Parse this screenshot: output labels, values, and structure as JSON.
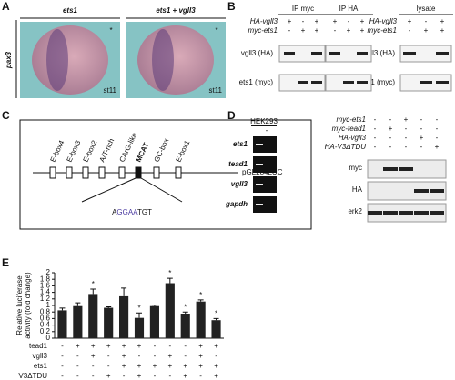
{
  "panel_labels": [
    "A",
    "B",
    "C",
    "D",
    "E"
  ],
  "panel_a": {
    "columns": [
      "ets1",
      "ets1 + vgll3"
    ],
    "row_label": "pax3",
    "asterisk": "*",
    "stage": "st11"
  },
  "panel_b": {
    "groups": [
      "IP myc",
      "IP HA",
      "lysate"
    ],
    "conditions": [
      {
        "label": "HA-vgll3",
        "ip": [
          "+",
          "-",
          "+",
          "+",
          "-",
          "+"
        ],
        "lysate": [
          "+",
          "-",
          "+"
        ]
      },
      {
        "label": "myc-ets1",
        "ip": [
          "-",
          "+",
          "+",
          "-",
          "+",
          "+"
        ],
        "lysate": [
          "-",
          "+",
          "+"
        ]
      }
    ],
    "blots": [
      "vgll3 (HA)",
      "ets1 (myc)"
    ]
  },
  "panel_c": {
    "elements": [
      "E-box4",
      "E-box3",
      "E-box2",
      "A/T-rich",
      "CArG-like",
      "MCAT",
      "GC-box",
      "E-box1"
    ],
    "construct": "pGL284LUC",
    "sequence": [
      "A",
      "GGAA",
      "TGT"
    ]
  },
  "panel_d": {
    "cell_line": "HEK293",
    "lane_label": "-",
    "genes": [
      "ets1",
      "tead1",
      "vgll3",
      "gapdh"
    ],
    "conditions": [
      {
        "label": "myc-ets1",
        "signs": [
          "-",
          "-",
          "+",
          "-",
          "-"
        ]
      },
      {
        "label": "myc-tead1",
        "signs": [
          "-",
          "+",
          "-",
          "-",
          "-"
        ]
      },
      {
        "label": "HA-vgll3",
        "signs": [
          "-",
          "-",
          "-",
          "+",
          "-"
        ]
      },
      {
        "label": "HA-V3ΔTDU",
        "signs": [
          "-",
          "-",
          "-",
          "-",
          "+"
        ]
      }
    ],
    "blots": [
      "myc",
      "HA",
      "erk2"
    ]
  },
  "chart_data": {
    "type": "bar",
    "y_label": [
      "Relative luciferase",
      "activity (fold change)"
    ],
    "values": [
      0.85,
      0.98,
      1.35,
      0.93,
      1.28,
      0.62,
      0.98,
      1.68,
      0.75,
      1.12,
      0.55
    ],
    "errors": [
      0.07,
      0.1,
      0.15,
      0.03,
      0.25,
      0.15,
      0.03,
      0.15,
      0.05,
      0.05,
      0.05
    ],
    "color": "#222222",
    "ylim": [
      0,
      2
    ],
    "yticks": [
      0,
      0.2,
      0.4,
      0.6,
      0.8,
      1,
      1.2,
      1.4,
      1.6,
      1.8,
      2
    ],
    "significant": [
      false,
      false,
      true,
      false,
      false,
      true,
      false,
      true,
      true,
      true,
      true
    ],
    "significance_mark": "*",
    "conditions": [
      {
        "label": "tead1",
        "signs": [
          "-",
          "+",
          "+",
          "+",
          "+",
          "+",
          "-",
          "-",
          "-",
          "+",
          "+"
        ]
      },
      {
        "label": "vgll3",
        "signs": [
          "-",
          "-",
          "+",
          "-",
          "+",
          "-",
          "-",
          "+",
          "-",
          "+",
          "-"
        ]
      },
      {
        "label": "ets1",
        "signs": [
          "-",
          "-",
          "-",
          "-",
          "+",
          "+",
          "+",
          "+",
          "+",
          "+",
          "+"
        ]
      },
      {
        "label": "V3ΔTDU",
        "signs": [
          "-",
          "-",
          "-",
          "+",
          "-",
          "+",
          "-",
          "-",
          "+",
          "-",
          "+"
        ]
      }
    ]
  }
}
